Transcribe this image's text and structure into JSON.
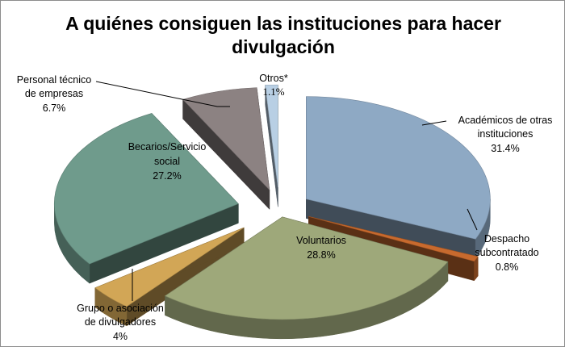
{
  "chart_data": {
    "type": "pie",
    "title_lines": [
      "A quiénes consiguen las instituciones para hacer",
      "divulgación"
    ],
    "slices": [
      {
        "label_lines": [
          "Académicos de otras",
          "instituciones"
        ],
        "value_text": "31.4%",
        "value": 31.4,
        "color": "#8ea9c4"
      },
      {
        "label_lines": [
          "Despacho",
          "subcontratado"
        ],
        "value_text": "0.8%",
        "value": 0.8,
        "color": "#c86a2e"
      },
      {
        "label_lines": [
          "Voluntarios"
        ],
        "value_text": "28.8%",
        "value": 28.8,
        "color": "#9ea87a"
      },
      {
        "label_lines": [
          "Grupo o asociación",
          "de divulgadores"
        ],
        "value_text": "4%",
        "value": 4,
        "color": "#d2a656"
      },
      {
        "label_lines": [
          "Becarios/Servicio",
          "social"
        ],
        "value_text": "27.2%",
        "value": 27.2,
        "color": "#6f9b8c"
      },
      {
        "label_lines": [
          "Personal técnico",
          "de empresas"
        ],
        "value_text": "6.7%",
        "value": 6.7,
        "color": "#8c8282"
      },
      {
        "label_lines": [
          "Otros*"
        ],
        "value_text": "1.1%",
        "value": 1.1,
        "color": "#b8cfe4"
      }
    ]
  }
}
